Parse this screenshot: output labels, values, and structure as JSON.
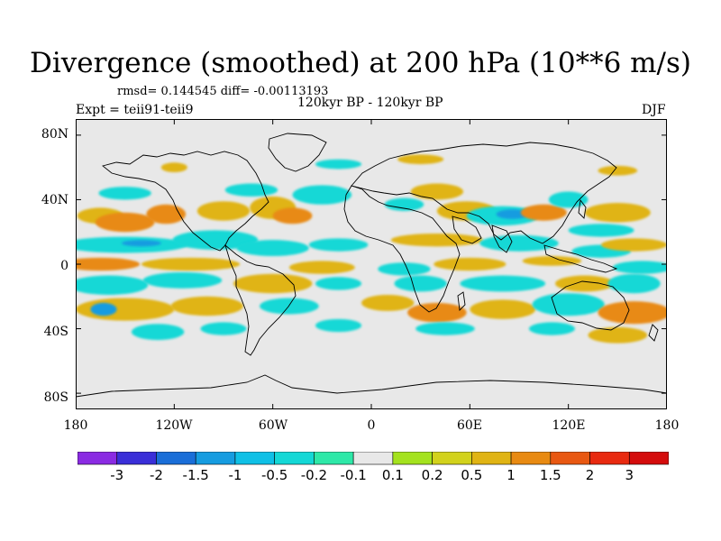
{
  "map": {
    "title": "Divergence (smoothed) at 200 hPa (10**6 m/s)",
    "stats": "rmsd= 0.144545 diff= -0.00113193",
    "experiment": "Expt = teii91-teii9",
    "period": "120kyr BP - 120kyr BP",
    "season": "DJF",
    "lat_labels": [
      "80N",
      "40N",
      "0",
      "40S",
      "80S"
    ],
    "lon_labels": [
      "180",
      "120W",
      "60W",
      "0",
      "60E",
      "120E",
      "180"
    ],
    "lat_range": [
      -90,
      90
    ],
    "lon_range": [
      -180,
      180
    ],
    "background": "#e8e8e8",
    "blobs": [
      {
        "lon": -165,
        "lat": 30,
        "rx": 14,
        "ry": 5,
        "level": 3
      },
      {
        "lon": -150,
        "lat": 26,
        "rx": 18,
        "ry": 6,
        "level": 4
      },
      {
        "lon": -125,
        "lat": 31,
        "rx": 12,
        "ry": 6,
        "level": 4
      },
      {
        "lon": -90,
        "lat": 33,
        "rx": 16,
        "ry": 6,
        "level": 3
      },
      {
        "lon": -60,
        "lat": 35,
        "rx": 14,
        "ry": 7,
        "level": 3
      },
      {
        "lon": -48,
        "lat": 30,
        "rx": 12,
        "ry": 5,
        "level": 4
      },
      {
        "lon": -150,
        "lat": 44,
        "rx": 16,
        "ry": 4,
        "level": -2
      },
      {
        "lon": -73,
        "lat": 46,
        "rx": 16,
        "ry": 4,
        "level": -2
      },
      {
        "lon": -30,
        "lat": 43,
        "rx": 18,
        "ry": 6,
        "level": -2
      },
      {
        "lon": 20,
        "lat": 37,
        "rx": 12,
        "ry": 4,
        "level": -2
      },
      {
        "lon": 40,
        "lat": 45,
        "rx": 16,
        "ry": 5,
        "level": 3
      },
      {
        "lon": 58,
        "lat": 33,
        "rx": 18,
        "ry": 6,
        "level": 3
      },
      {
        "lon": 80,
        "lat": 30,
        "rx": 22,
        "ry": 6,
        "level": -2
      },
      {
        "lon": 86,
        "lat": 31,
        "rx": 10,
        "ry": 3,
        "level": -4
      },
      {
        "lon": 105,
        "lat": 32,
        "rx": 14,
        "ry": 5,
        "level": 4
      },
      {
        "lon": 120,
        "lat": 40,
        "rx": 12,
        "ry": 5,
        "level": -2
      },
      {
        "lon": 150,
        "lat": 32,
        "rx": 20,
        "ry": 6,
        "level": 3
      },
      {
        "lon": 140,
        "lat": 21,
        "rx": 20,
        "ry": 4,
        "level": -2
      },
      {
        "lon": -150,
        "lat": 12,
        "rx": 38,
        "ry": 5,
        "level": -2
      },
      {
        "lon": -140,
        "lat": 13,
        "rx": 12,
        "ry": 2,
        "level": -4
      },
      {
        "lon": -95,
        "lat": 15,
        "rx": 26,
        "ry": 6,
        "level": -2
      },
      {
        "lon": -60,
        "lat": 10,
        "rx": 22,
        "ry": 5,
        "level": -2
      },
      {
        "lon": -20,
        "lat": 12,
        "rx": 18,
        "ry": 4,
        "level": -2
      },
      {
        "lon": 40,
        "lat": 15,
        "rx": 28,
        "ry": 4,
        "level": 3
      },
      {
        "lon": 90,
        "lat": 13,
        "rx": 24,
        "ry": 5,
        "level": -2
      },
      {
        "lon": 140,
        "lat": 8,
        "rx": 18,
        "ry": 4,
        "level": -2
      },
      {
        "lon": 160,
        "lat": 12,
        "rx": 20,
        "ry": 4,
        "level": 3
      },
      {
        "lon": -165,
        "lat": 0,
        "rx": 24,
        "ry": 4,
        "level": 4
      },
      {
        "lon": -110,
        "lat": 0,
        "rx": 30,
        "ry": 4,
        "level": 3
      },
      {
        "lon": -30,
        "lat": -2,
        "rx": 20,
        "ry": 4,
        "level": 3
      },
      {
        "lon": 20,
        "lat": -3,
        "rx": 16,
        "ry": 4,
        "level": -2
      },
      {
        "lon": 60,
        "lat": 0,
        "rx": 22,
        "ry": 4,
        "level": 3
      },
      {
        "lon": 110,
        "lat": 2,
        "rx": 18,
        "ry": 3,
        "level": 3
      },
      {
        "lon": 165,
        "lat": -2,
        "rx": 18,
        "ry": 4,
        "level": -2
      },
      {
        "lon": -160,
        "lat": -13,
        "rx": 24,
        "ry": 6,
        "level": -2
      },
      {
        "lon": -115,
        "lat": -10,
        "rx": 24,
        "ry": 5,
        "level": -2
      },
      {
        "lon": -60,
        "lat": -12,
        "rx": 24,
        "ry": 6,
        "level": 3
      },
      {
        "lon": -20,
        "lat": -12,
        "rx": 14,
        "ry": 4,
        "level": -2
      },
      {
        "lon": 30,
        "lat": -12,
        "rx": 16,
        "ry": 5,
        "level": -2
      },
      {
        "lon": 80,
        "lat": -12,
        "rx": 26,
        "ry": 5,
        "level": -2
      },
      {
        "lon": 130,
        "lat": -12,
        "rx": 18,
        "ry": 5,
        "level": 3
      },
      {
        "lon": 160,
        "lat": -12,
        "rx": 16,
        "ry": 6,
        "level": -2
      },
      {
        "lon": -150,
        "lat": -28,
        "rx": 30,
        "ry": 7,
        "level": 3
      },
      {
        "lon": -163,
        "lat": -28,
        "rx": 8,
        "ry": 4,
        "level": -4
      },
      {
        "lon": -100,
        "lat": -26,
        "rx": 22,
        "ry": 6,
        "level": 3
      },
      {
        "lon": -50,
        "lat": -26,
        "rx": 18,
        "ry": 5,
        "level": -2
      },
      {
        "lon": 10,
        "lat": -24,
        "rx": 16,
        "ry": 5,
        "level": 3
      },
      {
        "lon": 40,
        "lat": -30,
        "rx": 18,
        "ry": 6,
        "level": 4
      },
      {
        "lon": 80,
        "lat": -28,
        "rx": 20,
        "ry": 6,
        "level": 3
      },
      {
        "lon": 120,
        "lat": -25,
        "rx": 22,
        "ry": 7,
        "level": -2
      },
      {
        "lon": 160,
        "lat": -30,
        "rx": 22,
        "ry": 7,
        "level": 4
      },
      {
        "lon": -130,
        "lat": -42,
        "rx": 16,
        "ry": 5,
        "level": -2
      },
      {
        "lon": -90,
        "lat": -40,
        "rx": 14,
        "ry": 4,
        "level": -2
      },
      {
        "lon": -20,
        "lat": -38,
        "rx": 14,
        "ry": 4,
        "level": -2
      },
      {
        "lon": 45,
        "lat": -40,
        "rx": 18,
        "ry": 4,
        "level": -2
      },
      {
        "lon": 110,
        "lat": -40,
        "rx": 14,
        "ry": 4,
        "level": -2
      },
      {
        "lon": 150,
        "lat": -44,
        "rx": 18,
        "ry": 5,
        "level": 3
      },
      {
        "lon": -20,
        "lat": 62,
        "rx": 14,
        "ry": 3,
        "level": -2
      },
      {
        "lon": 30,
        "lat": 65,
        "rx": 14,
        "ry": 3,
        "level": 3
      },
      {
        "lon": 150,
        "lat": 58,
        "rx": 12,
        "ry": 3,
        "level": 3
      },
      {
        "lon": -120,
        "lat": 60,
        "rx": 8,
        "ry": 3,
        "level": 3
      }
    ]
  },
  "colorbar": {
    "labels": [
      "-3",
      "-2",
      "-1.5",
      "-1",
      "-0.5",
      "-0.2",
      "-0.1",
      "0.1",
      "0.2",
      "0.5",
      "1",
      "1.5",
      "2",
      "3"
    ],
    "colors": [
      "#8a2be2",
      "#3a2fd8",
      "#1a6ed8",
      "#169ce0",
      "#0fc0e6",
      "#14d8d6",
      "#2ee8a8",
      "#e8e8e8",
      "#a4e21e",
      "#d2d21c",
      "#e0b414",
      "#e88a12",
      "#e85812",
      "#e82a10",
      "#d40c0c"
    ]
  }
}
